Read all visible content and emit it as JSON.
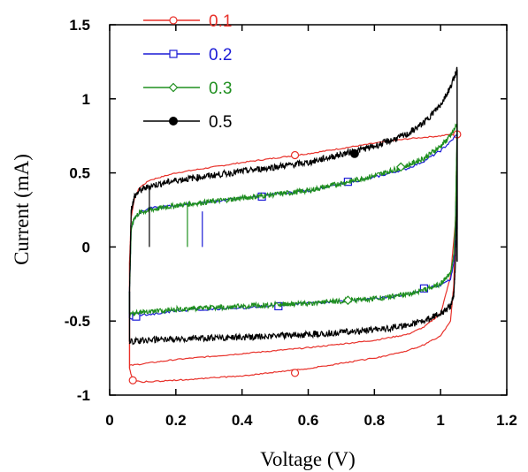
{
  "chart_data": {
    "type": "line",
    "title": "",
    "xlabel": "Voltage (V)",
    "ylabel": "Current (mA)",
    "xlim": [
      0,
      1.2
    ],
    "ylim": [
      -1,
      1.5
    ],
    "xticks": [
      "0",
      "0.2",
      "0.4",
      "0.6",
      "0.8",
      "1",
      "1.2"
    ],
    "yticks": [
      "-1",
      "-0.5",
      "0",
      "0.5",
      "1",
      "1.5"
    ],
    "grid": false,
    "legend_position": "top-left",
    "series": [
      {
        "name": "0.1",
        "color": "#e8312a",
        "marker": "open-circle",
        "noise": 0.004,
        "upper_x": [
          0.06,
          0.065,
          0.075,
          0.09,
          0.12,
          0.2,
          0.4,
          0.6,
          0.8,
          0.9,
          0.95,
          1.0,
          1.03,
          1.05
        ],
        "upper_y": [
          -0.1,
          0.2,
          0.33,
          0.4,
          0.45,
          0.5,
          0.57,
          0.63,
          0.7,
          0.73,
          0.74,
          0.75,
          0.76,
          0.76
        ],
        "lower_x": [
          1.05,
          1.045,
          1.04,
          1.03,
          1.0,
          0.95,
          0.9,
          0.8,
          0.6,
          0.4,
          0.2,
          0.1,
          0.07,
          0.06
        ],
        "lower_y": [
          0.76,
          0.2,
          -0.25,
          -0.5,
          -0.6,
          -0.66,
          -0.7,
          -0.75,
          -0.82,
          -0.87,
          -0.9,
          -0.91,
          -0.9,
          -0.82
        ],
        "marker_points": [
          [
            0.56,
            0.62
          ],
          [
            1.05,
            0.76
          ],
          [
            0.56,
            -0.85
          ],
          [
            0.07,
            -0.9
          ]
        ],
        "branch2_x": [
          0.06,
          0.2,
          0.4,
          0.6,
          0.8,
          0.9,
          0.95,
          1.0,
          1.03,
          1.05
        ],
        "branch2_y": [
          -0.8,
          -0.76,
          -0.72,
          -0.68,
          -0.63,
          -0.59,
          -0.54,
          -0.45,
          -0.2,
          0.3
        ]
      },
      {
        "name": "0.2",
        "color": "#1a1ad6",
        "marker": "open-square",
        "noise": 0.008,
        "upper_x": [
          0.06,
          0.065,
          0.075,
          0.09,
          0.12,
          0.2,
          0.4,
          0.6,
          0.8,
          0.9,
          0.95,
          1.0,
          1.03,
          1.05
        ],
        "upper_y": [
          -0.3,
          0.12,
          0.2,
          0.23,
          0.26,
          0.28,
          0.33,
          0.38,
          0.47,
          0.53,
          0.58,
          0.65,
          0.71,
          0.76
        ],
        "lower_x": [
          1.05,
          1.045,
          1.04,
          1.03,
          1.0,
          0.95,
          0.9,
          0.8,
          0.6,
          0.4,
          0.2,
          0.1,
          0.07,
          0.06
        ],
        "lower_y": [
          0.76,
          0.12,
          -0.1,
          -0.22,
          -0.26,
          -0.28,
          -0.32,
          -0.35,
          -0.38,
          -0.41,
          -0.43,
          -0.46,
          -0.48,
          -0.48
        ],
        "marker_points": [
          [
            0.46,
            0.34
          ],
          [
            0.72,
            0.44
          ],
          [
            0.95,
            -0.28
          ],
          [
            0.51,
            -0.4
          ],
          [
            0.08,
            -0.47
          ]
        ]
      },
      {
        "name": "0.3",
        "color": "#1f8f1f",
        "marker": "open-diamond",
        "noise": 0.018,
        "upper_x": [
          0.06,
          0.065,
          0.075,
          0.09,
          0.12,
          0.2,
          0.4,
          0.6,
          0.8,
          0.9,
          0.95,
          1.0,
          1.03,
          1.05
        ],
        "upper_y": [
          -0.3,
          0.12,
          0.2,
          0.23,
          0.25,
          0.28,
          0.33,
          0.38,
          0.48,
          0.55,
          0.6,
          0.68,
          0.75,
          0.83
        ],
        "lower_x": [
          1.05,
          1.045,
          1.04,
          1.03,
          1.0,
          0.95,
          0.9,
          0.8,
          0.6,
          0.4,
          0.2,
          0.1,
          0.07,
          0.06
        ],
        "lower_y": [
          0.83,
          0.18,
          -0.06,
          -0.18,
          -0.25,
          -0.29,
          -0.32,
          -0.35,
          -0.38,
          -0.4,
          -0.42,
          -0.44,
          -0.45,
          -0.45
        ],
        "marker_points": [
          [
            0.88,
            0.54
          ],
          [
            0.72,
            -0.36
          ]
        ]
      },
      {
        "name": "0.5",
        "color": "#000000",
        "marker": "filled-circle",
        "noise": 0.022,
        "upper_x": [
          0.06,
          0.065,
          0.075,
          0.09,
          0.12,
          0.2,
          0.4,
          0.6,
          0.8,
          0.9,
          0.95,
          1.0,
          1.03,
          1.05
        ],
        "upper_y": [
          -0.3,
          0.25,
          0.34,
          0.38,
          0.41,
          0.45,
          0.51,
          0.57,
          0.68,
          0.76,
          0.84,
          0.96,
          1.08,
          1.2
        ],
        "lower_x": [
          1.05,
          1.045,
          1.04,
          1.03,
          1.0,
          0.95,
          0.9,
          0.8,
          0.6,
          0.4,
          0.2,
          0.1,
          0.07,
          0.06
        ],
        "lower_y": [
          0.35,
          -0.1,
          -0.32,
          -0.4,
          -0.45,
          -0.5,
          -0.53,
          -0.56,
          -0.59,
          -0.61,
          -0.62,
          -0.63,
          -0.64,
          -0.64
        ],
        "marker_points": [
          [
            0.74,
            0.63
          ]
        ]
      }
    ]
  }
}
